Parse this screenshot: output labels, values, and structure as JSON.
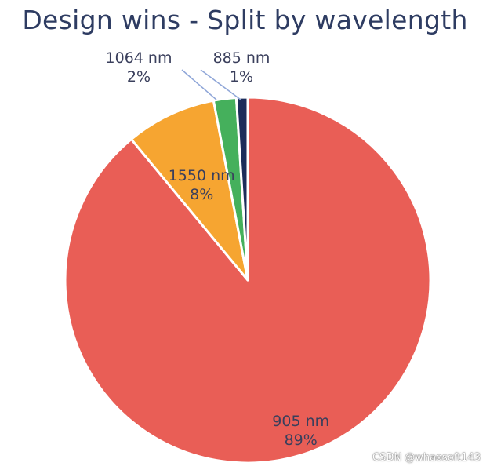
{
  "chart_data": {
    "type": "pie",
    "title": "Design wins - Split by wavelength",
    "slices": [
      {
        "name": "905 nm",
        "value": 89,
        "label": "89%",
        "color": "#e95e56"
      },
      {
        "name": "1550 nm",
        "value": 8,
        "label": "8%",
        "color": "#f6a531"
      },
      {
        "name": "1064 nm",
        "value": 2,
        "label": "2%",
        "color": "#45b05c"
      },
      {
        "name": "885 nm",
        "value": 1,
        "label": "1%",
        "color": "#1c2d5a"
      }
    ],
    "start_angle_deg": 0,
    "direction": "clockwise"
  },
  "watermark": "CSDN @whaosoft143",
  "colors": {
    "title": "#2e3c62",
    "label_text": "#3a3f5c",
    "leader_line": "#8fa6d8",
    "separator": "#ffffff"
  }
}
